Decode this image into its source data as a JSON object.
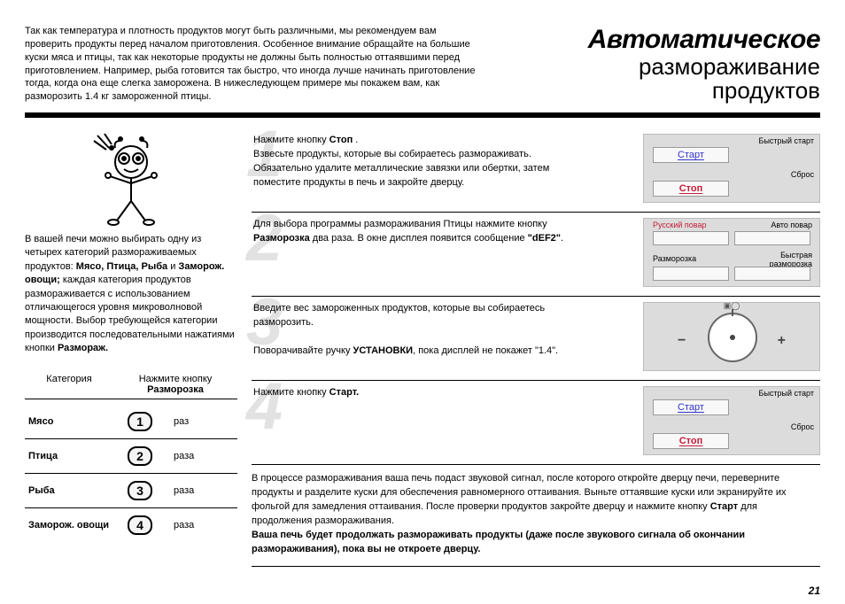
{
  "page_number": "21",
  "title_line1": "Автоматическое",
  "title_line2": "размораживание",
  "title_line3": "продуктов",
  "intro_text": "Так как температура и плотность продуктов могут быть различными, мы рекомендуем вам проверить продукты перед началом приготовления. Особенное внимание обращайте на большие куски мяса и птицы, так как некоторые продукты не должны быть полностью оттаявшими перед приготовлением. Например, рыба готовится так быстро, что иногда лучше начинать приготовление тогда, когда она еще слегка заморожена. В нижеследующем примере мы покажем вам, как разморозить 1.4 кг замороженной птицы.",
  "left": {
    "desc_pre": "В вашей печи можно выбирать одну из четырех категорий размораживаемых продуктов: ",
    "desc_bold": "Мясо, Птица, Рыба",
    "desc_and": " и ",
    "desc_bold2": "Заморож. овощи;",
    "desc_post": " каждая категория продуктов размораживается с использованием отличающегося уровня микроволновой мощности. Выбор требующейся категории производится последовательными нажатиями кнопки ",
    "desc_bold3": "Размораж.",
    "col1": "Категория",
    "col2a": "Нажмите кнопку",
    "col2b": "Разморозка",
    "rows": [
      {
        "name": "Мясо",
        "num": "1",
        "sfx": "раз"
      },
      {
        "name": "Птица",
        "num": "2",
        "sfx": "раза"
      },
      {
        "name": "Рыба",
        "num": "3",
        "sfx": "раза"
      },
      {
        "name": "Заморож. овощи",
        "num": "4",
        "sfx": "раза"
      }
    ]
  },
  "steps": [
    {
      "num": "1",
      "html": "Нажмите кнопку <b>Стоп</b> .<br>Взвесьте продукты, которые вы собираетесь размораживать. Обязательно удалите металлические завязки или обертки, затем поместите продукты в печь и закройте дверцу.",
      "panel": "startstop"
    },
    {
      "num": "2",
      "html": "Для выбора программы размораживания Птицы нажмите кнопку <b>Разморозка</b> два раза. В окне дисплея появится сообщение <b>\"dEF2\"</b>.",
      "panel": "cook"
    },
    {
      "num": "3",
      "html": "Введите вес замороженных продуктов, которые вы собираетесь разморозить.<br><br>Поворачивайте ручку <b>УСТАНОВКИ</b>, пока дисплей не покажет \"1.4\".",
      "panel": "dial"
    },
    {
      "num": "4",
      "html": "Нажмите кнопку <b>Старт.</b>",
      "panel": "startstop"
    }
  ],
  "panel_startstop": {
    "top_right": "Быстрый старт",
    "btn1": "Старт",
    "mid_right": "Сброс",
    "btn2": "Стоп"
  },
  "panel_cook": {
    "top_left": "Русский повар",
    "top_right": "Авто повар",
    "bot_left": "Разморозка",
    "bot_right": "Быстрая разморозка"
  },
  "after_pre": "В процессе размораживания ваша печь подаст звуковой сигнал, после которого откройте дверцу печи, переверните продукты и разделите куски для обеспечения равномерного оттаивания. Выньте оттаявшие куски или экранируйте их фольгой для замедления оттаивания. После проверки продуктов закройте дверцу и нажмите кнопку ",
  "after_b1": "Старт",
  "after_mid": " для продолжения размораживания.",
  "after_bold": "Ваша печь будет продолжать размораживать продукты (даже после звукового сигнала об окончании размораживания), пока вы не откроете дверцу."
}
